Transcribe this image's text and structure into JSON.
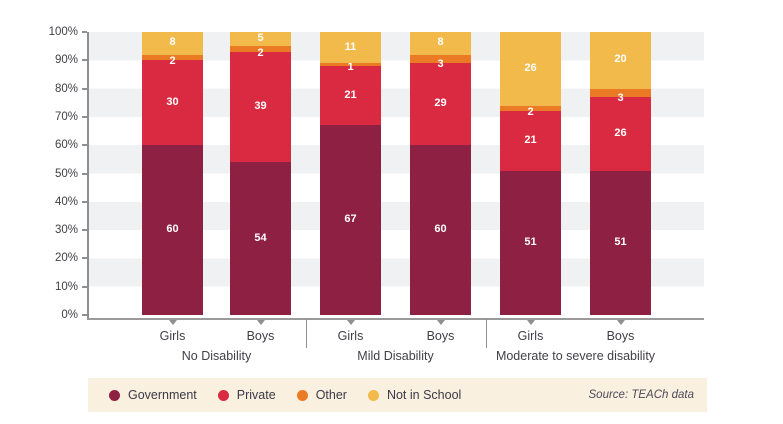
{
  "chart_data": {
    "type": "bar",
    "stacked": true,
    "percent_stacked": true,
    "groups": [
      "No Disability",
      "Mild Disability",
      "Moderate to severe disability"
    ],
    "bar_labels": [
      "Girls",
      "Boys",
      "Girls",
      "Boys",
      "Girls",
      "Boys"
    ],
    "series": [
      {
        "name": "Government",
        "color": "#8e2044",
        "values": [
          60,
          54,
          67,
          60,
          51,
          51
        ]
      },
      {
        "name": "Private",
        "color": "#da2a41",
        "values": [
          30,
          39,
          21,
          29,
          21,
          26
        ]
      },
      {
        "name": "Other",
        "color": "#ea7a24",
        "values": [
          2,
          2,
          1,
          3,
          2,
          3
        ]
      },
      {
        "name": "Not in School",
        "color": "#f2ba4b",
        "values": [
          8,
          5,
          11,
          8,
          26,
          20
        ]
      }
    ],
    "y_ticks": [
      "0%",
      "10%",
      "20%",
      "30%",
      "40%",
      "50%",
      "60%",
      "70%",
      "80%",
      "90%",
      "100%"
    ],
    "ylim": [
      0,
      100
    ],
    "grid": "alternating-horizontal-bands",
    "legend_position": "bottom",
    "source": "Source: TEACh data"
  },
  "colors": {
    "stripe": "#f0f1f3",
    "axis": "#8f8f8f",
    "legend_background": "#faf0df",
    "value_label_text": "#ffffff",
    "axis_text": "#413f46"
  }
}
